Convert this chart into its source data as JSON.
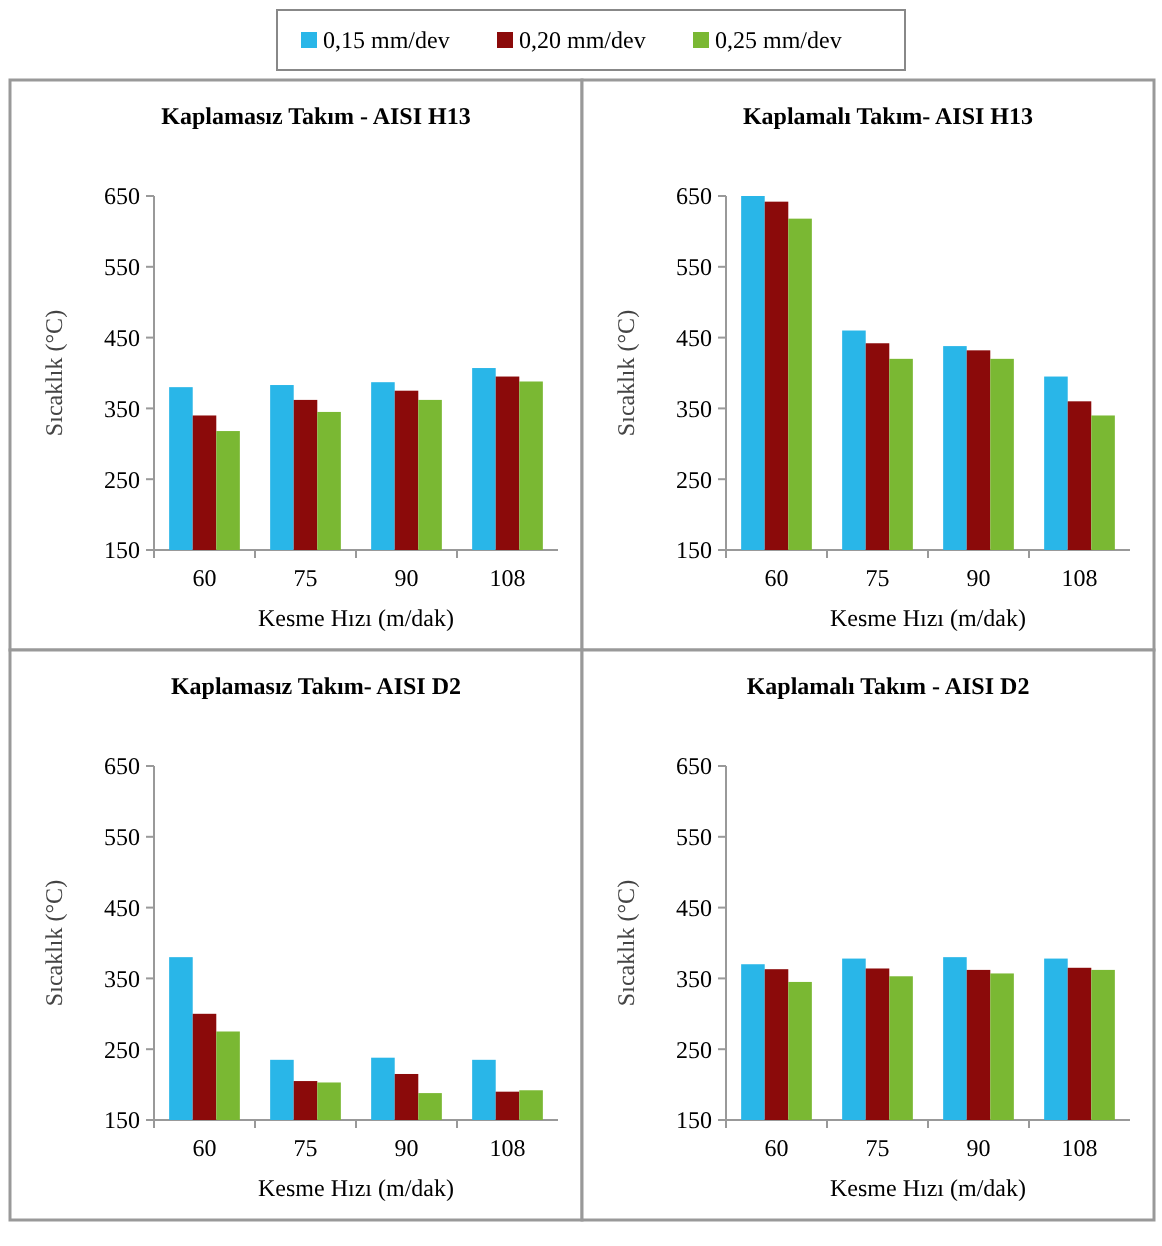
{
  "chart_data": [
    {
      "type": "bar",
      "title": "Kaplamasız Takım -  AISI H13",
      "xlabel": "Kesme Hızı  (m/dak)",
      "ylabel": "Sıcaklık  (°C)",
      "categories": [
        "60",
        "75",
        "90",
        "108"
      ],
      "ylim": [
        150,
        650
      ],
      "yticks": [
        150,
        250,
        350,
        450,
        550,
        650
      ],
      "legend": "top",
      "series": [
        {
          "name": "0,15 mm/dev",
          "color": "#29b6e8",
          "values": [
            380,
            383,
            387,
            407
          ]
        },
        {
          "name": "0,20 mm/dev",
          "color": "#8b0a0a",
          "values": [
            340,
            362,
            375,
            395
          ]
        },
        {
          "name": "0,25 mm/dev",
          "color": "#7ab833",
          "values": [
            318,
            345,
            362,
            388
          ]
        }
      ]
    },
    {
      "type": "bar",
      "title": "Kaplamalı Takım- AISI H13",
      "xlabel": "Kesme Hızı (m/dak)",
      "ylabel": "Sıcaklık (°C)",
      "categories": [
        "60",
        "75",
        "90",
        "108"
      ],
      "ylim": [
        150,
        650
      ],
      "yticks": [
        150,
        250,
        350,
        450,
        550,
        650
      ],
      "series": [
        {
          "color": "#29b6e8",
          "values": [
            650,
            460,
            438,
            395
          ]
        },
        {
          "color": "#8b0a0a",
          "values": [
            642,
            442,
            432,
            360
          ]
        },
        {
          "color": "#7ab833",
          "values": [
            618,
            420,
            420,
            340
          ]
        }
      ]
    },
    {
      "type": "bar",
      "title": "Kaplamasız Takım- AISI D2",
      "xlabel": "Kesme Hızı (m/dak)",
      "ylabel": "Sıcaklık (°C)",
      "categories": [
        "60",
        "75",
        "90",
        "108"
      ],
      "ylim": [
        150,
        650
      ],
      "yticks": [
        150,
        250,
        350,
        450,
        550,
        650
      ],
      "series": [
        {
          "color": "#29b6e8",
          "values": [
            380,
            235,
            238,
            235
          ]
        },
        {
          "color": "#8b0a0a",
          "values": [
            300,
            205,
            215,
            190
          ]
        },
        {
          "color": "#7ab833",
          "values": [
            275,
            203,
            188,
            192
          ]
        }
      ]
    },
    {
      "type": "bar",
      "title": "Kaplamalı Takım - AISI D2",
      "xlabel": "Kesme Hızı  (m/dak)",
      "ylabel": "Sıcaklık (°C)",
      "categories": [
        "60",
        "75",
        "90",
        "108"
      ],
      "ylim": [
        150,
        650
      ],
      "yticks": [
        150,
        250,
        350,
        450,
        550,
        650
      ],
      "series": [
        {
          "color": "#29b6e8",
          "values": [
            370,
            378,
            380,
            378
          ]
        },
        {
          "color": "#8b0a0a",
          "values": [
            363,
            364,
            362,
            365
          ]
        },
        {
          "color": "#7ab833",
          "values": [
            345,
            353,
            357,
            362
          ]
        }
      ]
    }
  ]
}
